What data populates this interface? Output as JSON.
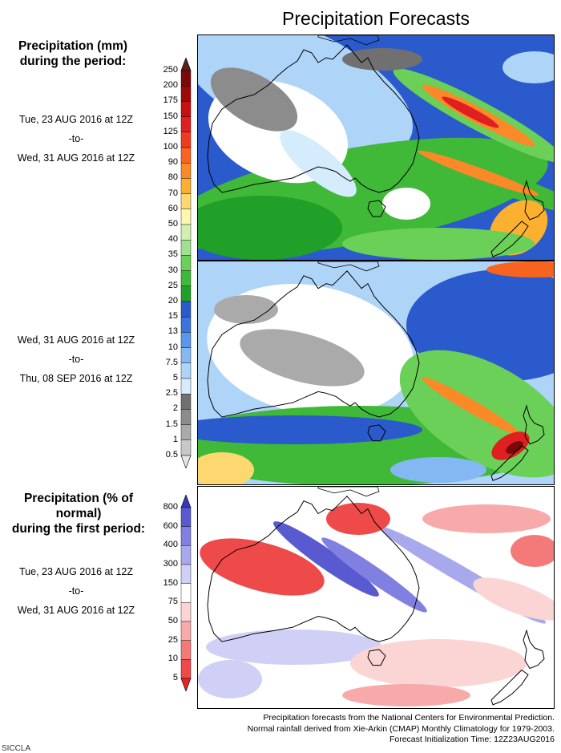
{
  "title": "Precipitation Forecasts",
  "section1": {
    "heading": [
      "Precipitation (mm)",
      "during the period:"
    ],
    "period1": {
      "start": "Tue, 23 AUG 2016 at 12Z",
      "sep": "-to-",
      "end": "Wed, 31 AUG 2016 at 12Z"
    },
    "period2": {
      "start": "Wed, 31 AUG 2016 at 12Z",
      "sep": "-to-",
      "end": "Thu, 08 SEP 2016 at 12Z"
    }
  },
  "section2": {
    "heading": [
      "Precipitation (% of normal)",
      "during the first period:"
    ],
    "period": {
      "start": "Tue, 23 AUG 2016 at 12Z",
      "sep": "-to-",
      "end": "Wed, 31 AUG 2016 at 12Z"
    }
  },
  "colorbar_mm": {
    "labels": [
      "250",
      "200",
      "175",
      "150",
      "125",
      "100",
      "90",
      "80",
      "70",
      "60",
      "50",
      "40",
      "35",
      "30",
      "25",
      "20",
      "15",
      "13",
      "10",
      "7.5",
      "5",
      "2.5",
      "2",
      "1.5",
      "1",
      "0.5"
    ],
    "colors": [
      "#5a2216",
      "#7a0a0a",
      "#9e0a0a",
      "#c81010",
      "#e02020",
      "#f03c1e",
      "#f86420",
      "#fa8a28",
      "#fbb030",
      "#fdd870",
      "#fff7b0",
      "#d0f0b0",
      "#a0e090",
      "#6ad058",
      "#40b838",
      "#20a028",
      "#2a5acc",
      "#3a74dc",
      "#5a96ea",
      "#84b8f2",
      "#aed4f8",
      "#d4ecfb",
      "#707070",
      "#8c8c8c",
      "#aaaaaa",
      "#c8c8c8",
      "#e6e6e6"
    ]
  },
  "colorbar_pct": {
    "labels": [
      "800",
      "600",
      "400",
      "300",
      "150",
      "75",
      "50",
      "25",
      "10",
      "5"
    ],
    "colors": [
      "#3838b8",
      "#5a5ad0",
      "#8080e0",
      "#a8a8ec",
      "#d0d0f6",
      "#ffffff",
      "#fbd4d4",
      "#f8aaaa",
      "#f47a7a",
      "#ee4a4a",
      "#e82222"
    ]
  },
  "footer": [
    "Precipitation forecasts from the National Centers for Environmental Prediction.",
    "Normal rainfall derived from Xie-Arkin (CMAP) Monthly Climatology for 1979-2003.",
    "Forecast Initialization Time: 12Z23AUG2016"
  ],
  "credit": "SICCLA"
}
